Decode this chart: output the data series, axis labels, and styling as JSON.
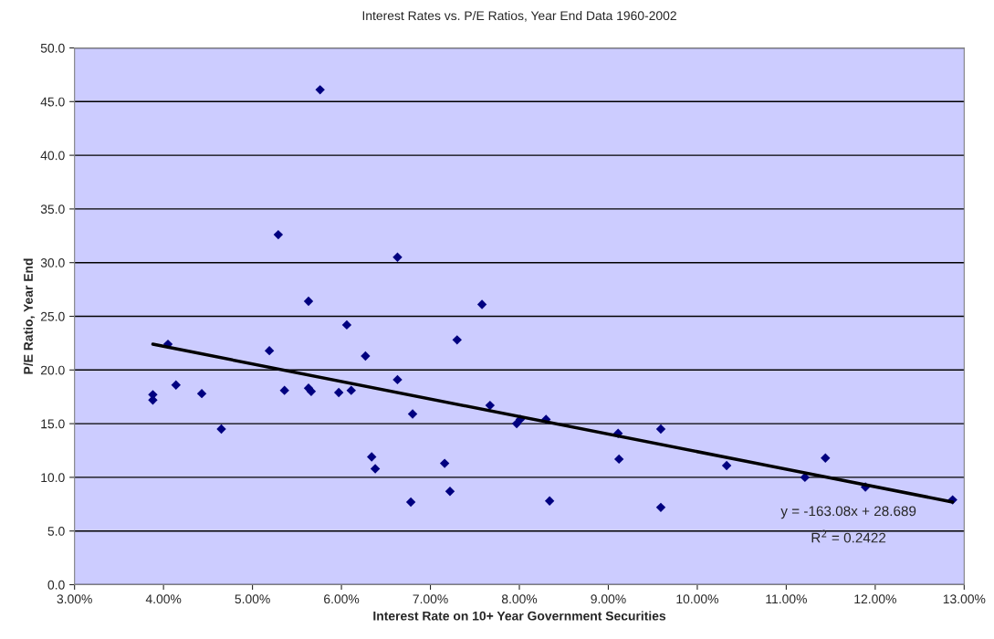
{
  "chart_data": {
    "type": "scatter",
    "title": "Interest Rates vs. P/E Ratios, Year End Data 1960-2002",
    "xlabel": "Interest Rate on 10+ Year Government Securities",
    "ylabel": "P/E Ratio, Year End",
    "series": [
      {
        "color": "#000080",
        "marker": "diamond",
        "x": [
          0.0388,
          0.0388,
          0.0405,
          0.0414,
          0.0443,
          0.0465,
          0.0519,
          0.0529,
          0.0536,
          0.0563,
          0.0563,
          0.0566,
          0.0576,
          0.0597,
          0.0606,
          0.0611,
          0.0627,
          0.0634,
          0.0638,
          0.0663,
          0.0663,
          0.0678,
          0.068,
          0.0716,
          0.0722,
          0.073,
          0.0758,
          0.0767,
          0.0797,
          0.0801,
          0.083,
          0.0834,
          0.0911,
          0.0912,
          0.0959,
          0.0959,
          0.1033,
          0.1121,
          0.1144,
          0.1189,
          0.1287
        ],
        "values": [
          17.2,
          17.7,
          22.4,
          18.6,
          17.8,
          14.5,
          21.8,
          32.6,
          18.1,
          26.4,
          18.3,
          18.0,
          46.1,
          17.9,
          24.2,
          18.1,
          21.3,
          11.9,
          10.8,
          30.5,
          19.1,
          7.7,
          15.9,
          11.3,
          8.7,
          22.8,
          26.1,
          16.7,
          15.0,
          15.4,
          15.4,
          7.8,
          14.1,
          11.7,
          14.5,
          7.2,
          11.1,
          10.0,
          11.8,
          9.1,
          7.9
        ]
      },
      {
        "type": "line",
        "color": "#000000",
        "x": [
          0.0388,
          0.1287
        ],
        "values": [
          22.4,
          7.7
        ]
      }
    ],
    "annotations": [
      "y = -163.08x + 28.689",
      "R$^{2}$ = 0.2422"
    ],
    "xlim": [
      0.03,
      0.13
    ],
    "xticks": [
      {
        "value": 0.03,
        "label": "3.00%"
      },
      {
        "value": 0.04,
        "label": "4.00%"
      },
      {
        "value": 0.05,
        "label": "5.00%"
      },
      {
        "value": 0.06,
        "label": "6.00%"
      },
      {
        "value": 0.07,
        "label": "7.00%"
      },
      {
        "value": 0.08,
        "label": "8.00%"
      },
      {
        "value": 0.09,
        "label": "9.00%"
      },
      {
        "value": 0.1,
        "label": "10.00%"
      },
      {
        "value": 0.11,
        "label": "11.00%"
      },
      {
        "value": 0.12,
        "label": "12.00%"
      },
      {
        "value": 0.13,
        "label": "13.00%"
      }
    ],
    "ylim": [
      0,
      50
    ],
    "yticks": [
      {
        "value": 0,
        "label": "0.0"
      },
      {
        "value": 5,
        "label": "5.0"
      },
      {
        "value": 10,
        "label": "10.0"
      },
      {
        "value": 15,
        "label": "15.0"
      },
      {
        "value": 20,
        "label": "20.0"
      },
      {
        "value": 25,
        "label": "25.0"
      },
      {
        "value": 30,
        "label": "30.0"
      },
      {
        "value": 35,
        "label": "35.0"
      },
      {
        "value": 40,
        "label": "40.0"
      },
      {
        "value": 45,
        "label": "45.0"
      },
      {
        "value": 50,
        "label": "50.0"
      }
    ],
    "grid": "y"
  }
}
